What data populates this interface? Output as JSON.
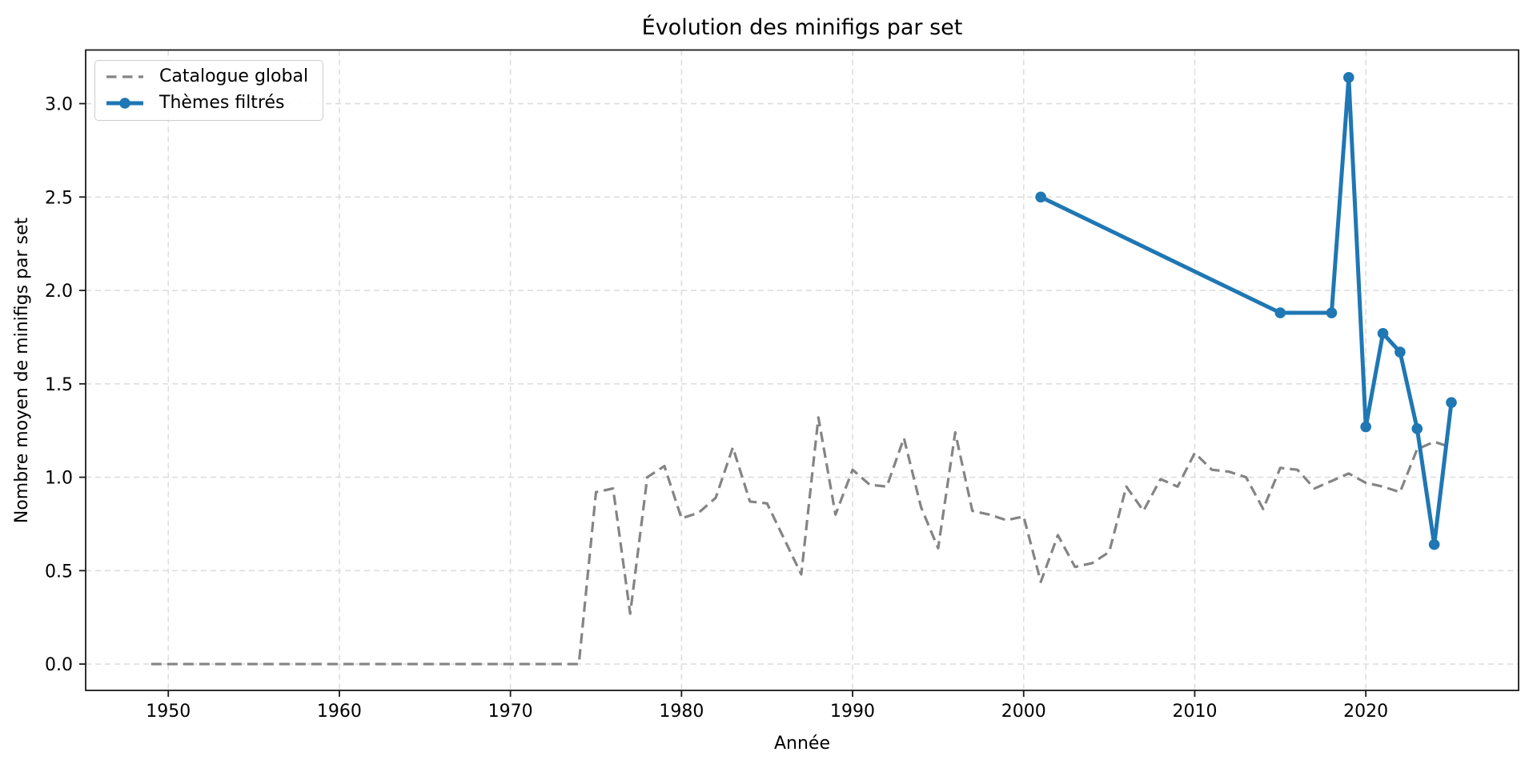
{
  "chart_data": {
    "type": "line",
    "title": "Évolution des minifigs par set",
    "xlabel": "Année",
    "ylabel": "Nombre moyen de minifigs par set",
    "xlim": [
      1945.17,
      2028.93
    ],
    "ylim": [
      -0.141,
      3.287
    ],
    "x_ticks": [
      1950,
      1960,
      1970,
      1980,
      1990,
      2000,
      2010,
      2020
    ],
    "y_tick_labels": [
      "0.0",
      "0.5",
      "1.0",
      "1.5",
      "2.0",
      "2.5",
      "3.0"
    ],
    "grid": true,
    "grid_style": "dashed",
    "legend_position": "upper left",
    "series": [
      {
        "name": "Catalogue global",
        "color": "#848484",
        "style": "dashed",
        "marker": "none",
        "x": [
          1949,
          1950,
          1951,
          1952,
          1953,
          1954,
          1955,
          1956,
          1957,
          1958,
          1959,
          1960,
          1961,
          1962,
          1963,
          1964,
          1965,
          1966,
          1967,
          1968,
          1969,
          1970,
          1971,
          1972,
          1973,
          1974,
          1975,
          1976,
          1977,
          1978,
          1979,
          1980,
          1981,
          1982,
          1983,
          1984,
          1985,
          1986,
          1987,
          1988,
          1989,
          1990,
          1991,
          1992,
          1993,
          1994,
          1995,
          1996,
          1997,
          1998,
          1999,
          2000,
          2001,
          2002,
          2003,
          2004,
          2005,
          2006,
          2007,
          2008,
          2009,
          2010,
          2011,
          2012,
          2013,
          2014,
          2015,
          2016,
          2017,
          2018,
          2019,
          2020,
          2021,
          2022,
          2023,
          2024,
          2025
        ],
        "y": [
          0,
          0,
          0,
          0,
          0,
          0,
          0,
          0,
          0,
          0,
          0,
          0,
          0,
          0,
          0,
          0,
          0,
          0,
          0,
          0,
          0,
          0,
          0,
          0,
          0,
          0,
          0.92,
          0.94,
          0.27,
          1.0,
          1.06,
          0.78,
          0.81,
          0.89,
          1.16,
          0.87,
          0.86,
          0.67,
          0.48,
          1.32,
          0.8,
          1.04,
          0.96,
          0.95,
          1.21,
          0.84,
          0.62,
          1.24,
          0.82,
          0.8,
          0.77,
          0.79,
          0.44,
          0.69,
          0.52,
          0.54,
          0.6,
          0.95,
          0.82,
          0.99,
          0.95,
          1.13,
          1.04,
          1.03,
          1.0,
          0.83,
          1.05,
          1.04,
          0.94,
          0.98,
          1.02,
          0.97,
          0.95,
          0.92,
          1.15,
          1.19,
          1.16
        ]
      },
      {
        "name": "Thèmes filtrés",
        "color": "#1f77b4",
        "style": "solid",
        "marker": "circle",
        "x": [
          2001,
          2015,
          2018,
          2019,
          2020,
          2021,
          2022,
          2023,
          2024,
          2025
        ],
        "y": [
          2.5,
          1.88,
          1.88,
          3.14,
          1.27,
          1.77,
          1.67,
          1.26,
          0.64,
          1.4
        ]
      }
    ]
  }
}
